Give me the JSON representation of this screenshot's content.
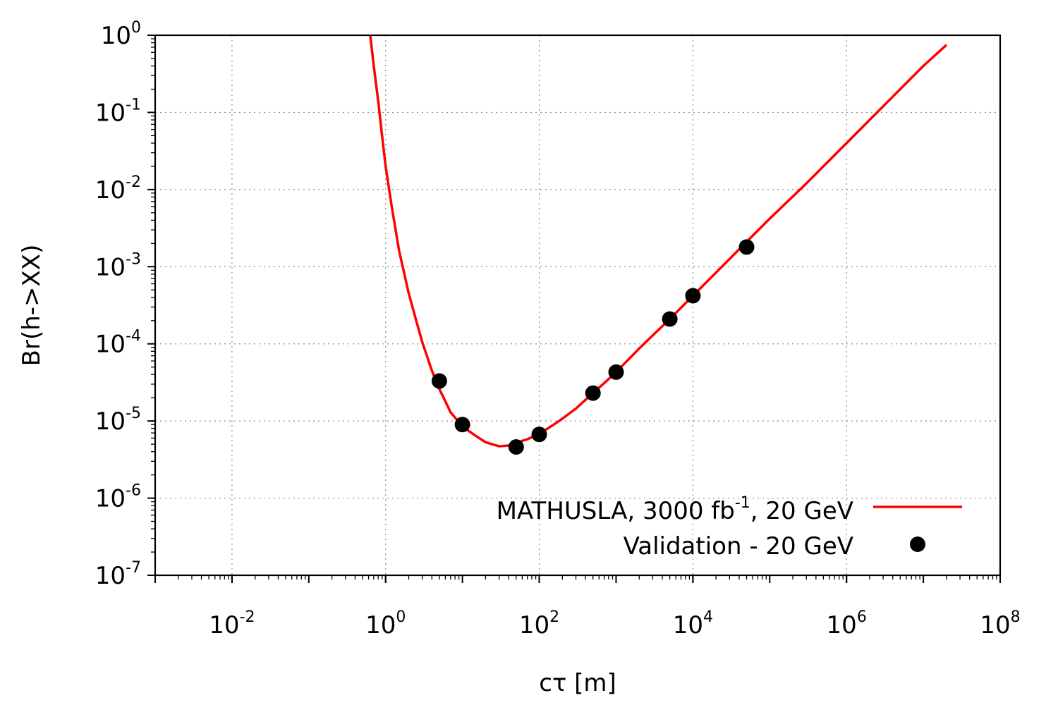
{
  "chart_data": {
    "type": "line",
    "xscale": "log",
    "yscale": "log",
    "xlabel": "cτ [m]",
    "ylabel": "Br(h->XX)",
    "xlim": [
      0.001,
      100000000
    ],
    "ylim": [
      1e-07,
      1
    ],
    "grid": true,
    "legend_position": "bottom-right",
    "x_ticks": [
      {
        "base": "10",
        "exp": "-2",
        "value": 0.01
      },
      {
        "base": "10",
        "exp": "0",
        "value": 1
      },
      {
        "base": "10",
        "exp": "2",
        "value": 100
      },
      {
        "base": "10",
        "exp": "4",
        "value": 10000
      },
      {
        "base": "10",
        "exp": "6",
        "value": 1000000
      },
      {
        "base": "10",
        "exp": "8",
        "value": 100000000
      }
    ],
    "y_ticks": [
      {
        "base": "10",
        "exp": "0",
        "value": 1
      },
      {
        "base": "10",
        "exp": "-1",
        "value": 0.1
      },
      {
        "base": "10",
        "exp": "-2",
        "value": 0.01
      },
      {
        "base": "10",
        "exp": "-3",
        "value": 0.001
      },
      {
        "base": "10",
        "exp": "-4",
        "value": 0.0001
      },
      {
        "base": "10",
        "exp": "-5",
        "value": 1e-05
      },
      {
        "base": "10",
        "exp": "-6",
        "value": 1e-06
      },
      {
        "base": "10",
        "exp": "-7",
        "value": 1e-07
      }
    ],
    "series": [
      {
        "name": "MATHUSLA, 3000 fb-1, 20 GeV",
        "legend_parts": [
          "MATHUSLA, 3000 fb",
          "-1",
          ", 20 GeV"
        ],
        "kind": "line",
        "color": "#ff0000",
        "x": [
          0.63,
          0.7,
          0.8,
          0.9,
          1.0,
          1.2,
          1.5,
          2.0,
          2.5,
          3.0,
          4.0,
          5.0,
          7.0,
          10,
          15,
          20,
          30,
          40,
          50,
          70,
          100,
          150,
          200,
          300,
          500,
          700,
          1000,
          2000,
          5000,
          10000,
          50000,
          100000,
          300000,
          1000000,
          3000000,
          10000000,
          20000000
        ],
        "y": [
          1.0,
          0.4,
          0.14,
          0.05,
          0.02,
          0.006,
          0.0016,
          0.00045,
          0.0002,
          0.000105,
          4.5e-05,
          2.6e-05,
          1.3e-05,
          8.5e-06,
          6.4e-06,
          5.3e-06,
          4.7e-06,
          4.8e-06,
          5.2e-06,
          5.8e-06,
          6.8e-06,
          8.8e-06,
          1.07e-05,
          1.45e-05,
          2.3e-05,
          3.1e-05,
          4.3e-05,
          8.7e-05,
          0.00021,
          0.00042,
          0.0021,
          0.0042,
          0.012,
          0.04,
          0.12,
          0.4,
          0.75
        ]
      },
      {
        "name": "Validation - 20 GeV",
        "kind": "scatter",
        "color": "#000000",
        "x": [
          5,
          10,
          50,
          100,
          500,
          1000,
          5000,
          10000,
          50000
        ],
        "y": [
          3.3e-05,
          9e-06,
          4.6e-06,
          6.7e-06,
          2.3e-05,
          4.3e-05,
          0.00021,
          0.00042,
          0.0018
        ]
      }
    ]
  }
}
